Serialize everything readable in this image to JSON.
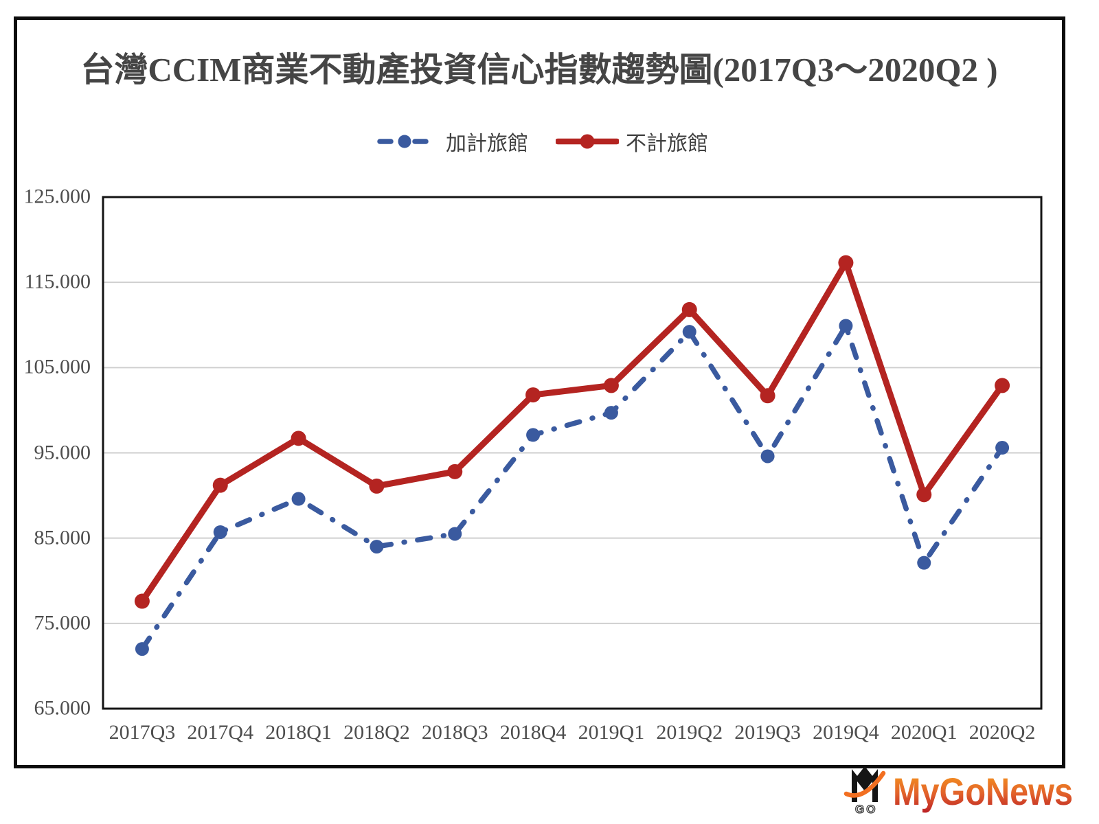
{
  "title": "台灣CCIM商業不動產投資信心指數趨勢圖(2017Q3～2020Q2 )",
  "legend": {
    "items": [
      {
        "label": "加計旅館",
        "line_style": "dash-dot"
      },
      {
        "label": "不計旅館",
        "line_style": "solid"
      }
    ]
  },
  "chart_data": {
    "type": "line",
    "title": "台灣CCIM商業不動產投資信心指數趨勢圖(2017Q3～2020Q2 )",
    "categories": [
      "2017Q3",
      "2017Q4",
      "2018Q1",
      "2018Q2",
      "2018Q3",
      "2018Q4",
      "2019Q1",
      "2019Q2",
      "2019Q3",
      "2019Q4",
      "2020Q1",
      "2020Q2"
    ],
    "series": [
      {
        "name": "加計旅館",
        "color": "#3a5a9f",
        "style": "dashdot",
        "values": [
          72.0,
          85.7,
          89.6,
          84.0,
          85.5,
          97.1,
          99.7,
          109.2,
          94.6,
          109.9,
          82.1,
          95.6
        ]
      },
      {
        "name": "不計旅館",
        "color": "#b42421",
        "style": "solid",
        "values": [
          77.6,
          91.2,
          96.7,
          91.1,
          92.8,
          101.8,
          102.9,
          111.8,
          101.7,
          117.3,
          90.1,
          102.9
        ]
      }
    ],
    "ylim": [
      65,
      125
    ],
    "yticks": [
      65,
      75,
      85,
      95,
      105,
      115,
      125
    ],
    "ytick_labels": [
      "65.000",
      "75.000",
      "85.000",
      "95.000",
      "105.000",
      "115.000",
      "125.000"
    ],
    "grid": true,
    "gridline_color": "#cfcfcf",
    "plot_border_color": "#141414",
    "legend_position": "top"
  },
  "watermark": {
    "text": "MyGoNews",
    "mark_text": "GO",
    "color_top": "#f89c1c",
    "color_mid": "#e2622b",
    "color_bottom": "#bb2025",
    "swoosh_color": "#f26f21"
  }
}
